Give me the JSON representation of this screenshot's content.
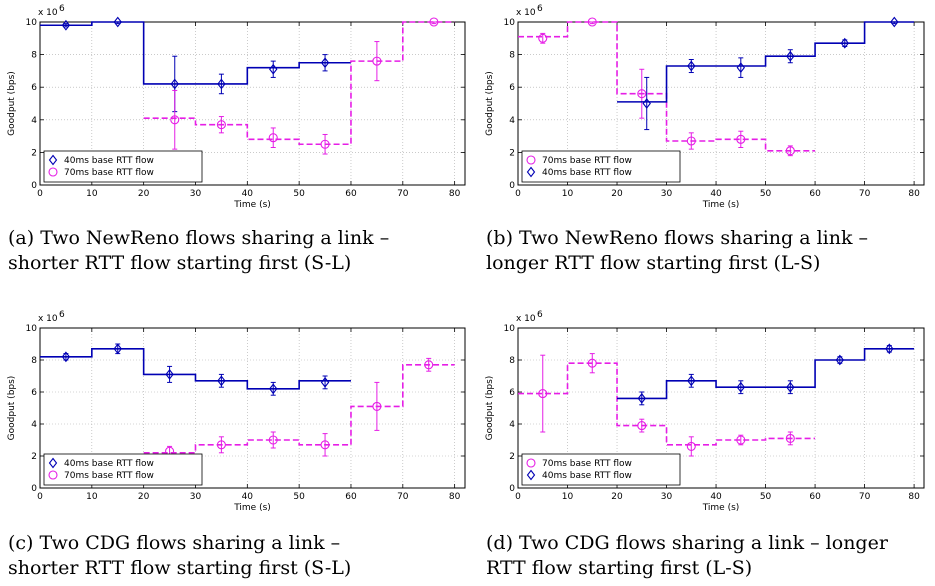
{
  "chart_data": [
    {
      "type": "line",
      "caption": "(a) Two NewReno flows sharing a link – shorter RTT flow starting first (S-L)",
      "caption_lines": [
        "(a) Two NewReno flows sharing a link –",
        "shorter RTT flow starting first (S-L)"
      ],
      "xlabel": "Time (s)",
      "ylabel": "Goodput (bps)",
      "y_multiplier": "x 10",
      "y_exponent": "6",
      "xlim": [
        0,
        82
      ],
      "ylim": [
        0,
        10
      ],
      "xticks": [
        0,
        10,
        20,
        30,
        40,
        50,
        60,
        70,
        80
      ],
      "yticks": [
        0,
        2,
        4,
        6,
        8,
        10
      ],
      "grid": true,
      "legend_position": "lower-left",
      "series": [
        {
          "name": "40ms base RTT flow",
          "color": "#0000b4",
          "line": "solid",
          "marker": "diamond",
          "steps": [
            [
              0,
              10,
              9.8
            ],
            [
              10,
              20,
              10.0
            ],
            [
              20,
              30,
              6.2
            ],
            [
              30,
              40,
              6.2
            ],
            [
              40,
              50,
              7.2
            ],
            [
              50,
              60,
              7.5
            ]
          ],
          "points": [
            [
              5,
              9.8,
              0.1
            ],
            [
              15,
              10.0,
              0.1
            ],
            [
              26,
              6.2,
              1.7
            ],
            [
              35,
              6.2,
              0.6
            ],
            [
              45,
              7.1,
              0.5
            ],
            [
              55,
              7.5,
              0.5
            ]
          ]
        },
        {
          "name": "70ms base RTT flow",
          "color": "#e61ee6",
          "line": "dashed",
          "marker": "circle",
          "steps": [
            [
              20,
              30,
              4.1
            ],
            [
              30,
              40,
              3.7
            ],
            [
              40,
              50,
              2.8
            ],
            [
              50,
              60,
              2.5
            ],
            [
              60,
              70,
              7.6
            ],
            [
              70,
              80,
              10.0
            ]
          ],
          "points": [
            [
              26,
              4.0,
              1.8
            ],
            [
              35,
              3.7,
              0.5
            ],
            [
              45,
              2.9,
              0.6
            ],
            [
              55,
              2.5,
              0.6
            ],
            [
              65,
              7.6,
              1.2
            ],
            [
              76,
              10.0,
              0.1
            ]
          ]
        }
      ]
    },
    {
      "type": "line",
      "caption": "(b) Two NewReno flows sharing a link – longer RTT flow starting first (L-S)",
      "caption_lines": [
        "(b) Two NewReno flows sharing a link –",
        "longer RTT flow starting first (L-S)"
      ],
      "xlabel": "Time (s)",
      "ylabel": "Goodput (bps)",
      "y_multiplier": "x 10",
      "y_exponent": "6",
      "xlim": [
        0,
        82
      ],
      "ylim": [
        0,
        10
      ],
      "xticks": [
        0,
        10,
        20,
        30,
        40,
        50,
        60,
        70,
        80
      ],
      "yticks": [
        0,
        2,
        4,
        6,
        8,
        10
      ],
      "grid": true,
      "legend_position": "lower-left",
      "series": [
        {
          "name": "70ms base RTT flow",
          "color": "#e61ee6",
          "line": "dashed",
          "marker": "circle",
          "steps": [
            [
              0,
              10,
              9.1
            ],
            [
              10,
              20,
              10.0
            ],
            [
              20,
              30,
              5.6
            ],
            [
              30,
              40,
              2.7
            ],
            [
              40,
              50,
              2.8
            ],
            [
              50,
              60,
              2.1
            ]
          ],
          "points": [
            [
              5,
              9.0,
              0.3
            ],
            [
              15,
              10.0,
              0.1
            ],
            [
              25,
              5.6,
              1.5
            ],
            [
              35,
              2.7,
              0.5
            ],
            [
              45,
              2.8,
              0.5
            ],
            [
              55,
              2.1,
              0.3
            ]
          ]
        },
        {
          "name": "40ms base RTT flow",
          "color": "#0000b4",
          "line": "solid",
          "marker": "diamond",
          "steps": [
            [
              20,
              30,
              5.1
            ],
            [
              30,
              40,
              7.3
            ],
            [
              40,
              50,
              7.3
            ],
            [
              50,
              60,
              7.9
            ],
            [
              60,
              70,
              8.7
            ],
            [
              70,
              80,
              10.0
            ]
          ],
          "points": [
            [
              26,
              5.0,
              1.6
            ],
            [
              35,
              7.3,
              0.4
            ],
            [
              45,
              7.2,
              0.6
            ],
            [
              55,
              7.9,
              0.4
            ],
            [
              66,
              8.7,
              0.2
            ],
            [
              76,
              10.0,
              0.1
            ]
          ]
        }
      ]
    },
    {
      "type": "line",
      "caption": "(c) Two CDG flows sharing a link – shorter RTT flow starting first (S-L)",
      "caption_lines": [
        "(c)  Two  CDG  flows  sharing  a  link  –",
        "shorter RTT flow starting first (S-L)"
      ],
      "xlabel": "Time (s)",
      "ylabel": "Goodput (bps)",
      "y_multiplier": "x 10",
      "y_exponent": "6",
      "xlim": [
        0,
        82
      ],
      "ylim": [
        0,
        10
      ],
      "xticks": [
        0,
        10,
        20,
        30,
        40,
        50,
        60,
        70,
        80
      ],
      "yticks": [
        0,
        2,
        4,
        6,
        8,
        10
      ],
      "grid": true,
      "legend_position": "lower-left",
      "series": [
        {
          "name": "40ms base RTT flow",
          "color": "#0000b4",
          "line": "solid",
          "marker": "diamond",
          "steps": [
            [
              0,
              10,
              8.2
            ],
            [
              10,
              20,
              8.7
            ],
            [
              20,
              30,
              7.1
            ],
            [
              30,
              40,
              6.7
            ],
            [
              40,
              50,
              6.2
            ],
            [
              50,
              60,
              6.7
            ]
          ],
          "points": [
            [
              5,
              8.2,
              0.2
            ],
            [
              15,
              8.7,
              0.3
            ],
            [
              25,
              7.1,
              0.5
            ],
            [
              35,
              6.7,
              0.4
            ],
            [
              45,
              6.2,
              0.4
            ],
            [
              55,
              6.6,
              0.4
            ]
          ]
        },
        {
          "name": "70ms base RTT flow",
          "color": "#e61ee6",
          "line": "dashed",
          "marker": "circle",
          "steps": [
            [
              20,
              30,
              2.2
            ],
            [
              30,
              40,
              2.7
            ],
            [
              40,
              50,
              3.0
            ],
            [
              50,
              60,
              2.7
            ],
            [
              60,
              70,
              5.1
            ],
            [
              70,
              80,
              7.7
            ]
          ],
          "points": [
            [
              25,
              2.3,
              0.3
            ],
            [
              35,
              2.7,
              0.5
            ],
            [
              45,
              3.0,
              0.5
            ],
            [
              55,
              2.7,
              0.7
            ],
            [
              65,
              5.1,
              1.5
            ],
            [
              75,
              7.7,
              0.4
            ]
          ]
        }
      ]
    },
    {
      "type": "line",
      "caption": "(d) Two CDG flows sharing a link – longer RTT flow starting first (L-S)",
      "caption_lines": [
        "(d) Two CDG flows sharing a link – longer",
        "RTT flow starting first (L-S)"
      ],
      "xlabel": "Time (s)",
      "ylabel": "Goodput (bps)",
      "y_multiplier": "x 10",
      "y_exponent": "6",
      "xlim": [
        0,
        82
      ],
      "ylim": [
        0,
        10
      ],
      "xticks": [
        0,
        10,
        20,
        30,
        40,
        50,
        60,
        70,
        80
      ],
      "yticks": [
        0,
        2,
        4,
        6,
        8,
        10
      ],
      "grid": true,
      "legend_position": "lower-left",
      "series": [
        {
          "name": "70ms base RTT flow",
          "color": "#e61ee6",
          "line": "dashed",
          "marker": "circle",
          "steps": [
            [
              0,
              10,
              5.9
            ],
            [
              10,
              20,
              7.8
            ],
            [
              20,
              30,
              3.9
            ],
            [
              30,
              40,
              2.7
            ],
            [
              40,
              50,
              3.0
            ],
            [
              50,
              60,
              3.1
            ]
          ],
          "points": [
            [
              5,
              5.9,
              2.4
            ],
            [
              15,
              7.8,
              0.6
            ],
            [
              25,
              3.9,
              0.4
            ],
            [
              35,
              2.6,
              0.6
            ],
            [
              45,
              3.0,
              0.3
            ],
            [
              55,
              3.1,
              0.4
            ]
          ]
        },
        {
          "name": "40ms base RTT flow",
          "color": "#0000b4",
          "line": "solid",
          "marker": "diamond",
          "steps": [
            [
              20,
              30,
              5.6
            ],
            [
              30,
              40,
              6.7
            ],
            [
              40,
              50,
              6.3
            ],
            [
              50,
              60,
              6.3
            ],
            [
              60,
              70,
              8.0
            ],
            [
              70,
              80,
              8.7
            ]
          ],
          "points": [
            [
              25,
              5.6,
              0.4
            ],
            [
              35,
              6.7,
              0.4
            ],
            [
              45,
              6.3,
              0.4
            ],
            [
              55,
              6.3,
              0.4
            ],
            [
              65,
              8.0,
              0.2
            ],
            [
              75,
              8.7,
              0.2
            ]
          ]
        }
      ]
    }
  ]
}
